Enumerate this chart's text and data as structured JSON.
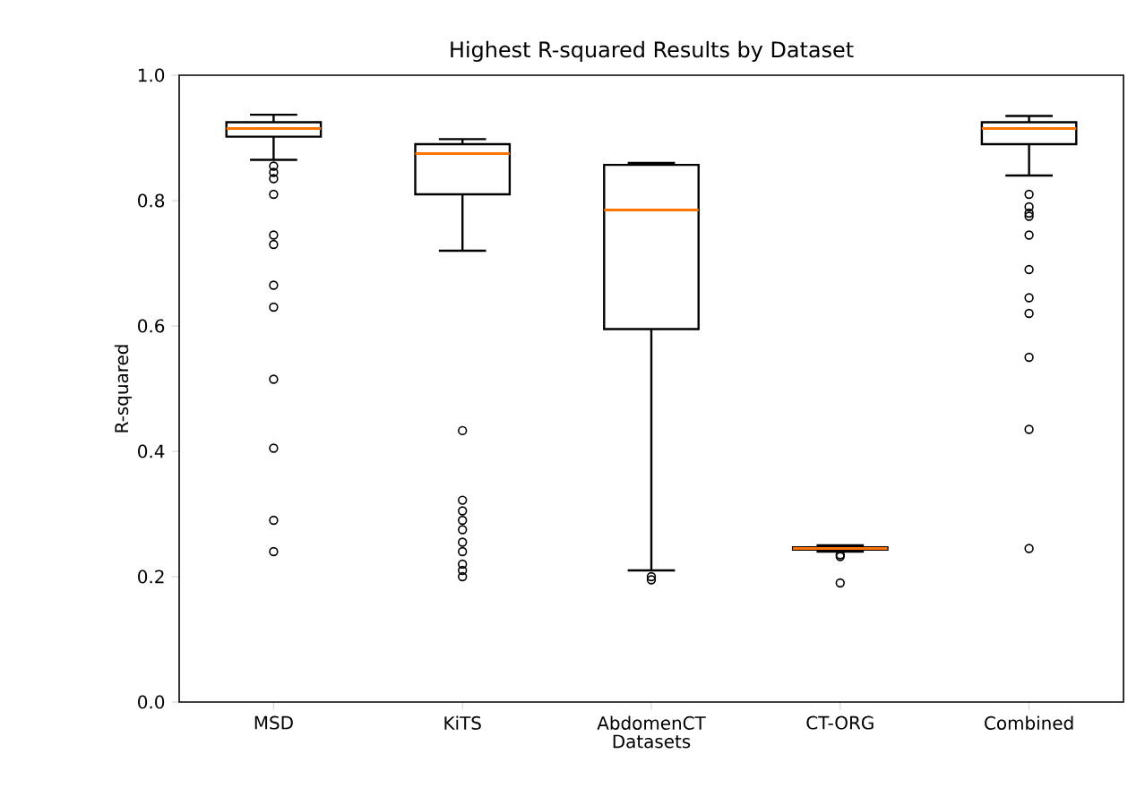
{
  "chart_data": {
    "type": "box",
    "title": "Highest R-squared Results by Dataset",
    "xlabel": "Datasets",
    "ylabel": "R-squared",
    "categories": [
      "MSD",
      "KiTS",
      "AbdomenCT",
      "CT-ORG",
      "Combined"
    ],
    "boxes": [
      {
        "low": 0.865,
        "q1": 0.902,
        "median": 0.915,
        "q3": 0.925,
        "high": 0.937,
        "outliers": [
          0.855,
          0.845,
          0.835,
          0.81,
          0.745,
          0.73,
          0.665,
          0.63,
          0.515,
          0.405,
          0.29,
          0.24
        ]
      },
      {
        "low": 0.72,
        "q1": 0.81,
        "median": 0.875,
        "q3": 0.89,
        "high": 0.898,
        "outliers": [
          0.433,
          0.322,
          0.305,
          0.29,
          0.275,
          0.255,
          0.24,
          0.22,
          0.21,
          0.2
        ]
      },
      {
        "low": 0.21,
        "q1": 0.595,
        "median": 0.785,
        "q3": 0.857,
        "high": 0.86,
        "outliers": [
          0.2,
          0.195
        ]
      },
      {
        "low": 0.24,
        "q1": 0.243,
        "median": 0.245,
        "q3": 0.247,
        "high": 0.25,
        "outliers": [
          0.235,
          0.232,
          0.19
        ]
      },
      {
        "low": 0.84,
        "q1": 0.89,
        "median": 0.915,
        "q3": 0.925,
        "high": 0.935,
        "outliers": [
          0.81,
          0.79,
          0.78,
          0.775,
          0.745,
          0.69,
          0.645,
          0.62,
          0.55,
          0.435,
          0.245
        ]
      }
    ],
    "ylim": [
      0,
      1.0
    ],
    "yticks": [
      {
        "value": 0,
        "label": "0.0"
      },
      {
        "value": 0.2,
        "label": "0.2"
      },
      {
        "value": 0.4,
        "label": "0.4"
      },
      {
        "value": 0.6,
        "label": "0.6"
      },
      {
        "value": 0.8,
        "label": "0.8"
      },
      {
        "value": 1.0,
        "label": "1.0"
      }
    ],
    "grid": false,
    "marker": "circle"
  }
}
